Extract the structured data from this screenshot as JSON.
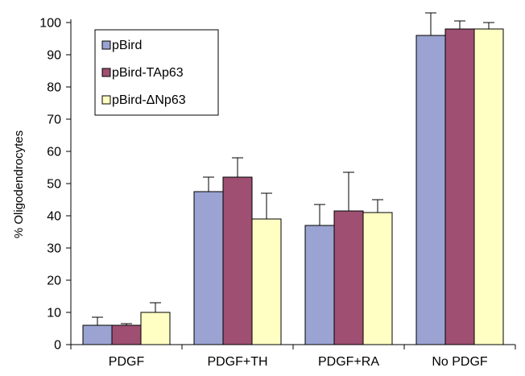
{
  "chart_data": {
    "type": "bar",
    "title": "",
    "xlabel": "",
    "ylabel": "% Oligodendrocytes",
    "ylim": [
      0,
      100
    ],
    "yticks": [
      0,
      10,
      20,
      30,
      40,
      50,
      60,
      70,
      80,
      90,
      100
    ],
    "grid": false,
    "legend_position": "top-left",
    "categories": [
      "PDGF",
      "PDGF+TH",
      "PDGF+RA",
      "No PDGF"
    ],
    "series": [
      {
        "name": "pBird",
        "color": "#9aa3d1",
        "values": [
          6,
          47.5,
          37,
          96
        ],
        "errors": [
          2.5,
          4.5,
          6.5,
          7
        ]
      },
      {
        "name": "pBird-TAp63",
        "color": "#9e4f72",
        "values": [
          6,
          52,
          41.5,
          98
        ],
        "errors": [
          0.5,
          6,
          12,
          2.5
        ]
      },
      {
        "name": "pBird-ΔNp63",
        "color": "#ffffc4",
        "values": [
          10,
          39,
          41,
          98
        ],
        "errors": [
          3,
          8,
          4,
          2
        ]
      }
    ]
  }
}
